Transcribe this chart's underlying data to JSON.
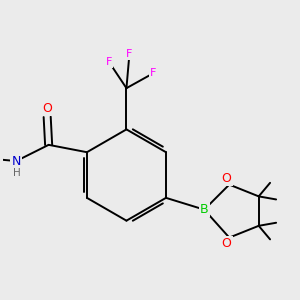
{
  "bg_color": "#ebebeb",
  "bond_color": "#000000",
  "atom_colors": {
    "O": "#ff0000",
    "N": "#0000cc",
    "B": "#00cc00",
    "F": "#ff00ff",
    "H": "#666666",
    "C": "#000000"
  },
  "figsize": [
    3.0,
    3.0
  ],
  "dpi": 100
}
